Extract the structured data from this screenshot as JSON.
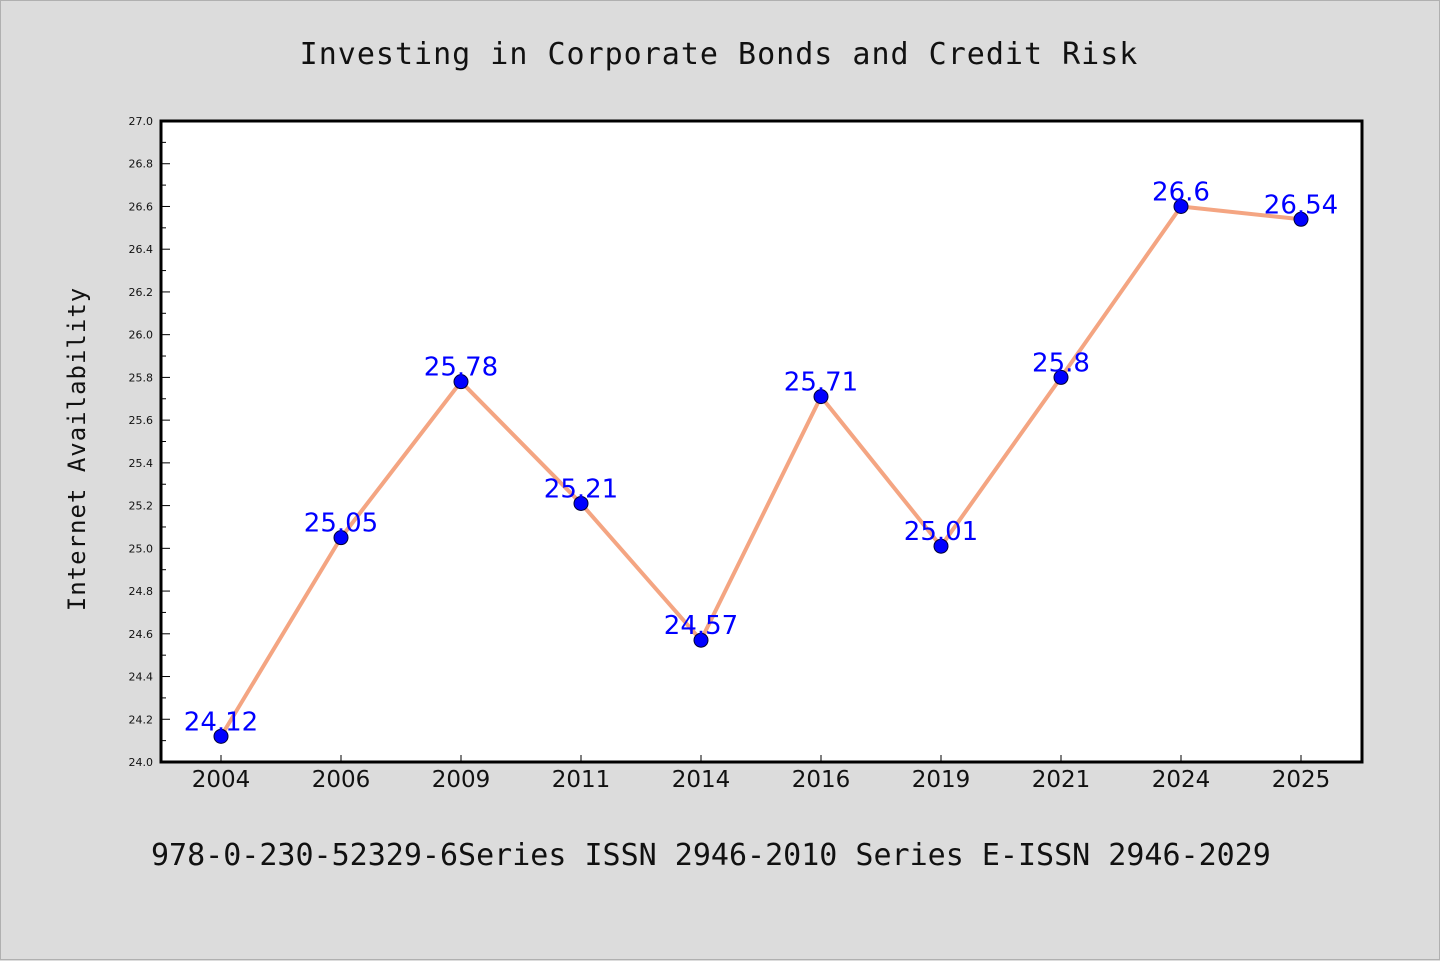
{
  "chart_data": {
    "type": "line",
    "title": "Investing in Corporate Bonds and Credit Risk",
    "xlabel": "",
    "ylabel": "Internet Availability",
    "categories": [
      "2004",
      "2006",
      "2009",
      "2011",
      "2014",
      "2016",
      "2019",
      "2021",
      "2024",
      "2025"
    ],
    "series": [
      {
        "values": [
          24.12,
          25.05,
          25.78,
          25.21,
          24.57,
          25.71,
          25.01,
          25.8,
          26.6,
          26.54
        ],
        "labels": [
          "24.12",
          "25.05",
          "25.78",
          "25.21",
          "24.57",
          "25.71",
          "25.01",
          "25.8",
          "26.6",
          "26.54"
        ],
        "line_color": "#f4a582",
        "marker_color": "#0000ff"
      }
    ],
    "ylim": [
      24.0,
      27.0
    ],
    "yticks": [
      "24.0",
      "24.2",
      "24.4",
      "24.6",
      "24.8",
      "25.0",
      "25.2",
      "25.4",
      "25.6",
      "25.8",
      "26.0",
      "26.2",
      "26.4",
      "26.6",
      "26.8",
      "27.0"
    ],
    "grid": false,
    "legend": "none"
  },
  "footer": "978-0-230-52329-6Series ISSN 2946-2010 Series E-ISSN 2946-2029",
  "colors": {
    "background": "#dcdcdc",
    "plot_background": "#ffffff",
    "axis": "#000000",
    "data_label": "#0000ff"
  }
}
